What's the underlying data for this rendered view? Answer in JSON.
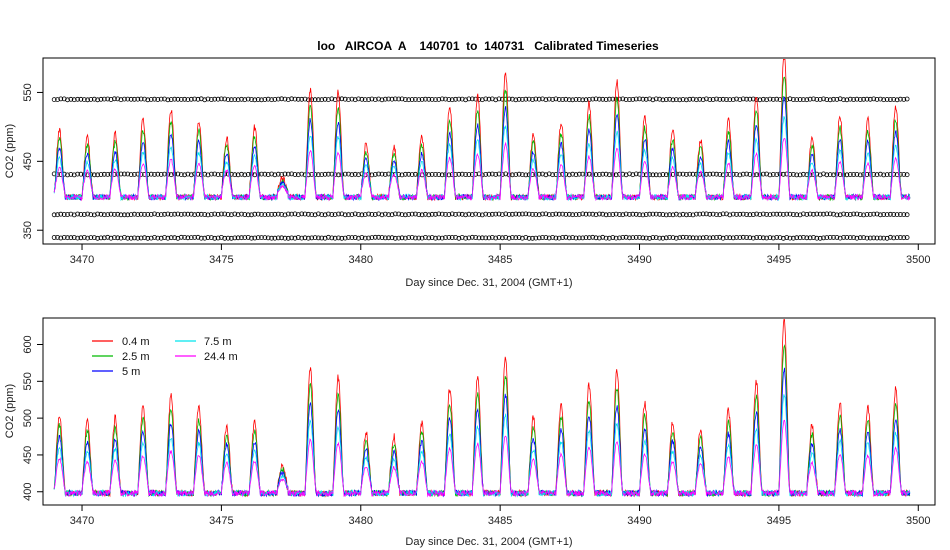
{
  "chart_data": [
    {
      "type": "line",
      "title": "loo   AIRCOA  A    140701  to  140731   Calibrated Timeseries",
      "xlabel": "Day since Dec. 31, 2004 (GMT+1)",
      "ylabel": "CO2 (ppm)",
      "xlim": [
        3468.6,
        3500.6
      ],
      "ylim": [
        330,
        600
      ],
      "x_ticks": [
        3470,
        3475,
        3480,
        3485,
        3490,
        3495,
        3500
      ],
      "y_ticks": [
        350,
        450,
        550
      ],
      "calibration_levels": [
        339,
        373,
        431,
        540
      ],
      "colors": {
        "0.4 m": "#ff0000",
        "2.5 m": "#00bb00",
        "5 m": "#0000ff",
        "7.5 m": "#00e5ee",
        "24.4 m": "#ff00ff",
        "calibration": "#000000"
      },
      "x_start": 3469.0,
      "x_end": 3499.7,
      "day_peaks": [
        {
          "day": 3469,
          "peak": 490
        },
        {
          "day": 3470,
          "peak": 480
        },
        {
          "day": 3471,
          "peak": 485
        },
        {
          "day": 3472,
          "peak": 505
        },
        {
          "day": 3473,
          "peak": 520
        },
        {
          "day": 3474,
          "peak": 505
        },
        {
          "day": 3475,
          "peak": 480
        },
        {
          "day": 3476,
          "peak": 495
        },
        {
          "day": 3477,
          "peak": 420
        },
        {
          "day": 3478,
          "peak": 550
        },
        {
          "day": 3479,
          "peak": 545
        },
        {
          "day": 3480,
          "peak": 470
        },
        {
          "day": 3481,
          "peak": 465
        },
        {
          "day": 3482,
          "peak": 480
        },
        {
          "day": 3483,
          "peak": 525
        },
        {
          "day": 3484,
          "peak": 540
        },
        {
          "day": 3485,
          "peak": 575
        },
        {
          "day": 3486,
          "peak": 485
        },
        {
          "day": 3487,
          "peak": 500
        },
        {
          "day": 3488,
          "peak": 530
        },
        {
          "day": 3489,
          "peak": 560
        },
        {
          "day": 3490,
          "peak": 510
        },
        {
          "day": 3491,
          "peak": 490
        },
        {
          "day": 3492,
          "peak": 475
        },
        {
          "day": 3493,
          "peak": 505
        },
        {
          "day": 3494,
          "peak": 540
        },
        {
          "day": 3495,
          "peak": 600
        },
        {
          "day": 3496,
          "peak": 480
        },
        {
          "day": 3497,
          "peak": 510
        },
        {
          "day": 3498,
          "peak": 505
        },
        {
          "day": 3499,
          "peak": 525
        }
      ]
    },
    {
      "type": "line",
      "title": "",
      "xlabel": "Day since Dec. 31, 2004 (GMT+1)",
      "ylabel": "CO2 (ppm)",
      "xlim": [
        3468.6,
        3500.6
      ],
      "ylim": [
        382,
        636
      ],
      "x_ticks": [
        3470,
        3475,
        3480,
        3485,
        3490,
        3495,
        3500
      ],
      "y_ticks": [
        400,
        450,
        500,
        550,
        600
      ],
      "legend_position": "top-left",
      "series": [
        {
          "name": "0.4 m",
          "color": "#ff0000"
        },
        {
          "name": "2.5 m",
          "color": "#00bb00"
        },
        {
          "name": "5 m",
          "color": "#0000ff"
        },
        {
          "name": "7.5 m",
          "color": "#00e5ee"
        },
        {
          "name": "24.4 m",
          "color": "#ff00ff"
        }
      ],
      "x_start": 3469.0,
      "x_end": 3499.7,
      "day_peaks": [
        {
          "day": 3469,
          "peak": 500
        },
        {
          "day": 3470,
          "peak": 490
        },
        {
          "day": 3471,
          "peak": 495
        },
        {
          "day": 3472,
          "peak": 510
        },
        {
          "day": 3473,
          "peak": 525
        },
        {
          "day": 3474,
          "peak": 510
        },
        {
          "day": 3475,
          "peak": 485
        },
        {
          "day": 3476,
          "peak": 490
        },
        {
          "day": 3477,
          "peak": 430
        },
        {
          "day": 3478,
          "peak": 565
        },
        {
          "day": 3479,
          "peak": 550
        },
        {
          "day": 3480,
          "peak": 475
        },
        {
          "day": 3481,
          "peak": 470
        },
        {
          "day": 3482,
          "peak": 490
        },
        {
          "day": 3483,
          "peak": 535
        },
        {
          "day": 3484,
          "peak": 550
        },
        {
          "day": 3485,
          "peak": 580
        },
        {
          "day": 3486,
          "peak": 495
        },
        {
          "day": 3487,
          "peak": 515
        },
        {
          "day": 3488,
          "peak": 540
        },
        {
          "day": 3489,
          "peak": 560
        },
        {
          "day": 3490,
          "peak": 515
        },
        {
          "day": 3491,
          "peak": 490
        },
        {
          "day": 3492,
          "peak": 480
        },
        {
          "day": 3493,
          "peak": 505
        },
        {
          "day": 3494,
          "peak": 545
        },
        {
          "day": 3495,
          "peak": 630
        },
        {
          "day": 3496,
          "peak": 485
        },
        {
          "day": 3497,
          "peak": 515
        },
        {
          "day": 3498,
          "peak": 510
        },
        {
          "day": 3499,
          "peak": 535
        }
      ]
    }
  ]
}
